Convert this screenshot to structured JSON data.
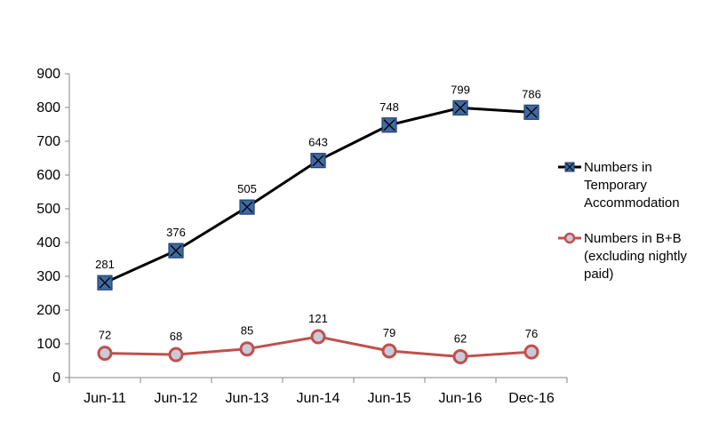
{
  "chart_data": {
    "type": "line",
    "title": "",
    "xlabel": "",
    "ylabel": "",
    "categories": [
      "Jun-11",
      "Jun-12",
      "Jun-13",
      "Jun-14",
      "Jun-15",
      "Jun-16",
      "Dec-16"
    ],
    "ylim": [
      0,
      900
    ],
    "yticks": [
      0,
      100,
      200,
      300,
      400,
      500,
      600,
      700,
      800,
      900
    ],
    "grid": false,
    "legend_position": "right",
    "series": [
      {
        "name_lines": [
          "Numbers in",
          "Temporary",
          "Accommodation"
        ],
        "values": [
          281,
          376,
          505,
          643,
          748,
          799,
          786
        ],
        "line_color": "#000000",
        "marker": "square-x",
        "marker_fill": "#3f6aa3",
        "marker_stroke": "#1f3f6e"
      },
      {
        "name_lines": [
          "Numbers in B+B",
          "(excluding nightly",
          "paid)"
        ],
        "values": [
          72,
          68,
          85,
          121,
          79,
          62,
          76
        ],
        "line_color": "#c0504d",
        "marker": "circle",
        "marker_fill": "#c9cbd9",
        "marker_stroke": "#c0504d"
      }
    ]
  }
}
